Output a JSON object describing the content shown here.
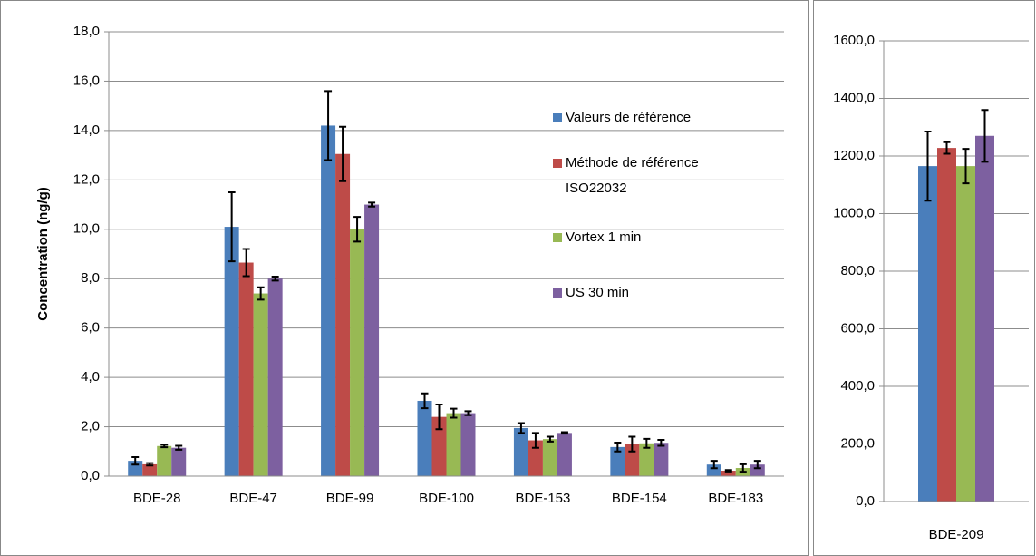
{
  "chart_data": [
    {
      "type": "bar",
      "y_label": "Concentration (ng/g)",
      "categories": [
        "BDE-28",
        "BDE-47",
        "BDE-99",
        "BDE-100",
        "BDE-153",
        "BDE-154",
        "BDE-183"
      ],
      "series": [
        {
          "name": "Valeurs de référence",
          "color": "#4a7ebb",
          "values": [
            0.62,
            10.1,
            14.2,
            3.05,
            1.95,
            1.18,
            0.47
          ],
          "errors": [
            0.15,
            1.4,
            1.4,
            0.3,
            0.2,
            0.18,
            0.15
          ]
        },
        {
          "name": "Méthode de référence ISO22032",
          "color": "#be4b48",
          "values": [
            0.48,
            8.65,
            13.05,
            2.4,
            1.45,
            1.3,
            0.22
          ],
          "errors": [
            0.05,
            0.55,
            1.1,
            0.5,
            0.3,
            0.3,
            0.03
          ]
        },
        {
          "name": "Vortex 1 min",
          "color": "#98b954",
          "values": [
            1.22,
            7.4,
            10.0,
            2.55,
            1.5,
            1.33,
            0.33
          ],
          "errors": [
            0.05,
            0.25,
            0.5,
            0.18,
            0.1,
            0.18,
            0.15
          ]
        },
        {
          "name": "US 30 min",
          "color": "#7d60a0",
          "values": [
            1.15,
            8.0,
            11.0,
            2.55,
            1.75,
            1.35,
            0.47
          ],
          "errors": [
            0.08,
            0.08,
            0.08,
            0.08,
            0.03,
            0.12,
            0.15
          ]
        }
      ],
      "ylim": [
        0,
        18
      ],
      "yticks": [
        {
          "value": 0,
          "label": "0,0"
        },
        {
          "value": 2,
          "label": "2,0"
        },
        {
          "value": 4,
          "label": "4,0"
        },
        {
          "value": 6,
          "label": "6,0"
        },
        {
          "value": 8,
          "label": "8,0"
        },
        {
          "value": 10,
          "label": "10,0"
        },
        {
          "value": 12,
          "label": "12,0"
        },
        {
          "value": 14,
          "label": "14,0"
        },
        {
          "value": 16,
          "label": "16,0"
        },
        {
          "value": 18,
          "label": "18,0"
        }
      ],
      "grid": true
    },
    {
      "type": "bar",
      "categories": [
        "BDE-209"
      ],
      "series": [
        {
          "color": "#4a7ebb",
          "values": [
            1165
          ],
          "errors": [
            120
          ]
        },
        {
          "color": "#be4b48",
          "values": [
            1228
          ],
          "errors": [
            20
          ]
        },
        {
          "color": "#98b954",
          "values": [
            1165
          ],
          "errors": [
            60
          ]
        },
        {
          "color": "#7d60a0",
          "values": [
            1270
          ],
          "errors": [
            90
          ]
        }
      ],
      "ylim": [
        0,
        1600
      ],
      "yticks": [
        {
          "value": 0,
          "label": "0,0"
        },
        {
          "value": 200,
          "label": "200,0"
        },
        {
          "value": 400,
          "label": "400,0"
        },
        {
          "value": 600,
          "label": "600,0"
        },
        {
          "value": 800,
          "label": "800,0"
        },
        {
          "value": 1000,
          "label": "1000,0"
        },
        {
          "value": 1200,
          "label": "1200,0"
        },
        {
          "value": 1400,
          "label": "1400,0"
        },
        {
          "value": 1600,
          "label": "1600,0"
        }
      ],
      "grid": true
    }
  ]
}
